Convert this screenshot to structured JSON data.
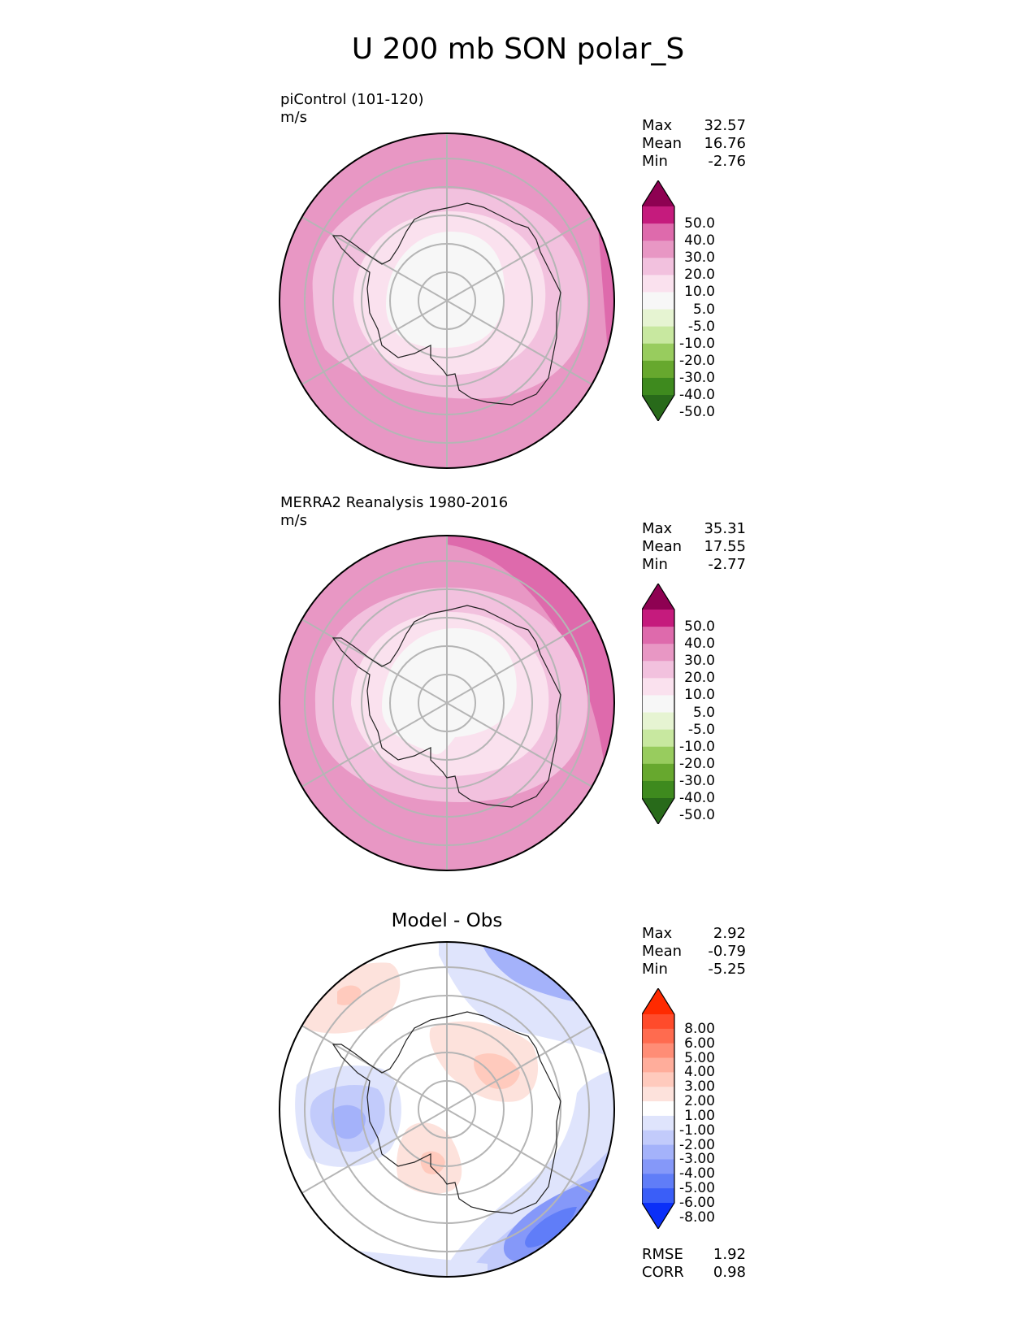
{
  "title": "U 200 mb SON polar_S",
  "panels": [
    {
      "id": "test",
      "title": "",
      "subtitle": "piControl (101-120)",
      "units": "m/s",
      "stats": [
        {
          "label": "Max",
          "value": "32.57"
        },
        {
          "label": "Mean",
          "value": "16.76"
        },
        {
          "label": "Min",
          "value": "-2.76"
        }
      ],
      "colorbar_labels": [
        "50.0",
        "40.0",
        "30.0",
        "20.0",
        "10.0",
        "5.0",
        "-5.0",
        "-10.0",
        "-20.0",
        "-30.0",
        "-40.0",
        "-50.0"
      ],
      "colorbar_colors": [
        "#8e0152",
        "#c51b7d",
        "#de6aac",
        "#e897c4",
        "#f2c1de",
        "#fae1ee",
        "#f7f7f7",
        "#e6f4d2",
        "#c8e8a0",
        "#98cc5e",
        "#67a82e",
        "#3e8a1e",
        "#286a1a"
      ]
    },
    {
      "id": "reference",
      "title": "",
      "subtitle": "MERRA2 Reanalysis 1980-2016",
      "units": "m/s",
      "stats": [
        {
          "label": "Max",
          "value": "35.31"
        },
        {
          "label": "Mean",
          "value": "17.55"
        },
        {
          "label": "Min",
          "value": "-2.77"
        }
      ],
      "colorbar_labels": [
        "50.0",
        "40.0",
        "30.0",
        "20.0",
        "10.0",
        "5.0",
        "-5.0",
        "-10.0",
        "-20.0",
        "-30.0",
        "-40.0",
        "-50.0"
      ],
      "colorbar_colors": [
        "#8e0152",
        "#c51b7d",
        "#de6aac",
        "#e897c4",
        "#f2c1de",
        "#fae1ee",
        "#f7f7f7",
        "#e6f4d2",
        "#c8e8a0",
        "#98cc5e",
        "#67a82e",
        "#3e8a1e",
        "#286a1a"
      ]
    },
    {
      "id": "diff",
      "title": "Model - Obs",
      "subtitle": "",
      "units": "",
      "stats": [
        {
          "label": "Max",
          "value": "2.92"
        },
        {
          "label": "Mean",
          "value": "-0.79"
        },
        {
          "label": "Min",
          "value": "-5.25"
        }
      ],
      "colorbar_labels": [
        "8.00",
        "6.00",
        "5.00",
        "4.00",
        "3.00",
        "2.00",
        "1.00",
        "-1.00",
        "-2.00",
        "-3.00",
        "-4.00",
        "-5.00",
        "-6.00",
        "-8.00"
      ],
      "colorbar_colors": [
        "#ff2a00",
        "#ff4b2b",
        "#ff6b4f",
        "#ff8d76",
        "#ffad9b",
        "#ffcabd",
        "#fde2dc",
        "#ffffff",
        "#dfe4fc",
        "#c2cbfb",
        "#a4b2fa",
        "#8598f9",
        "#607df8",
        "#3a5ef8",
        "#0b2ff8"
      ],
      "extra": [
        {
          "label": "RMSE",
          "value": "1.92"
        },
        {
          "label": "CORR",
          "value": "0.98"
        }
      ]
    }
  ]
}
